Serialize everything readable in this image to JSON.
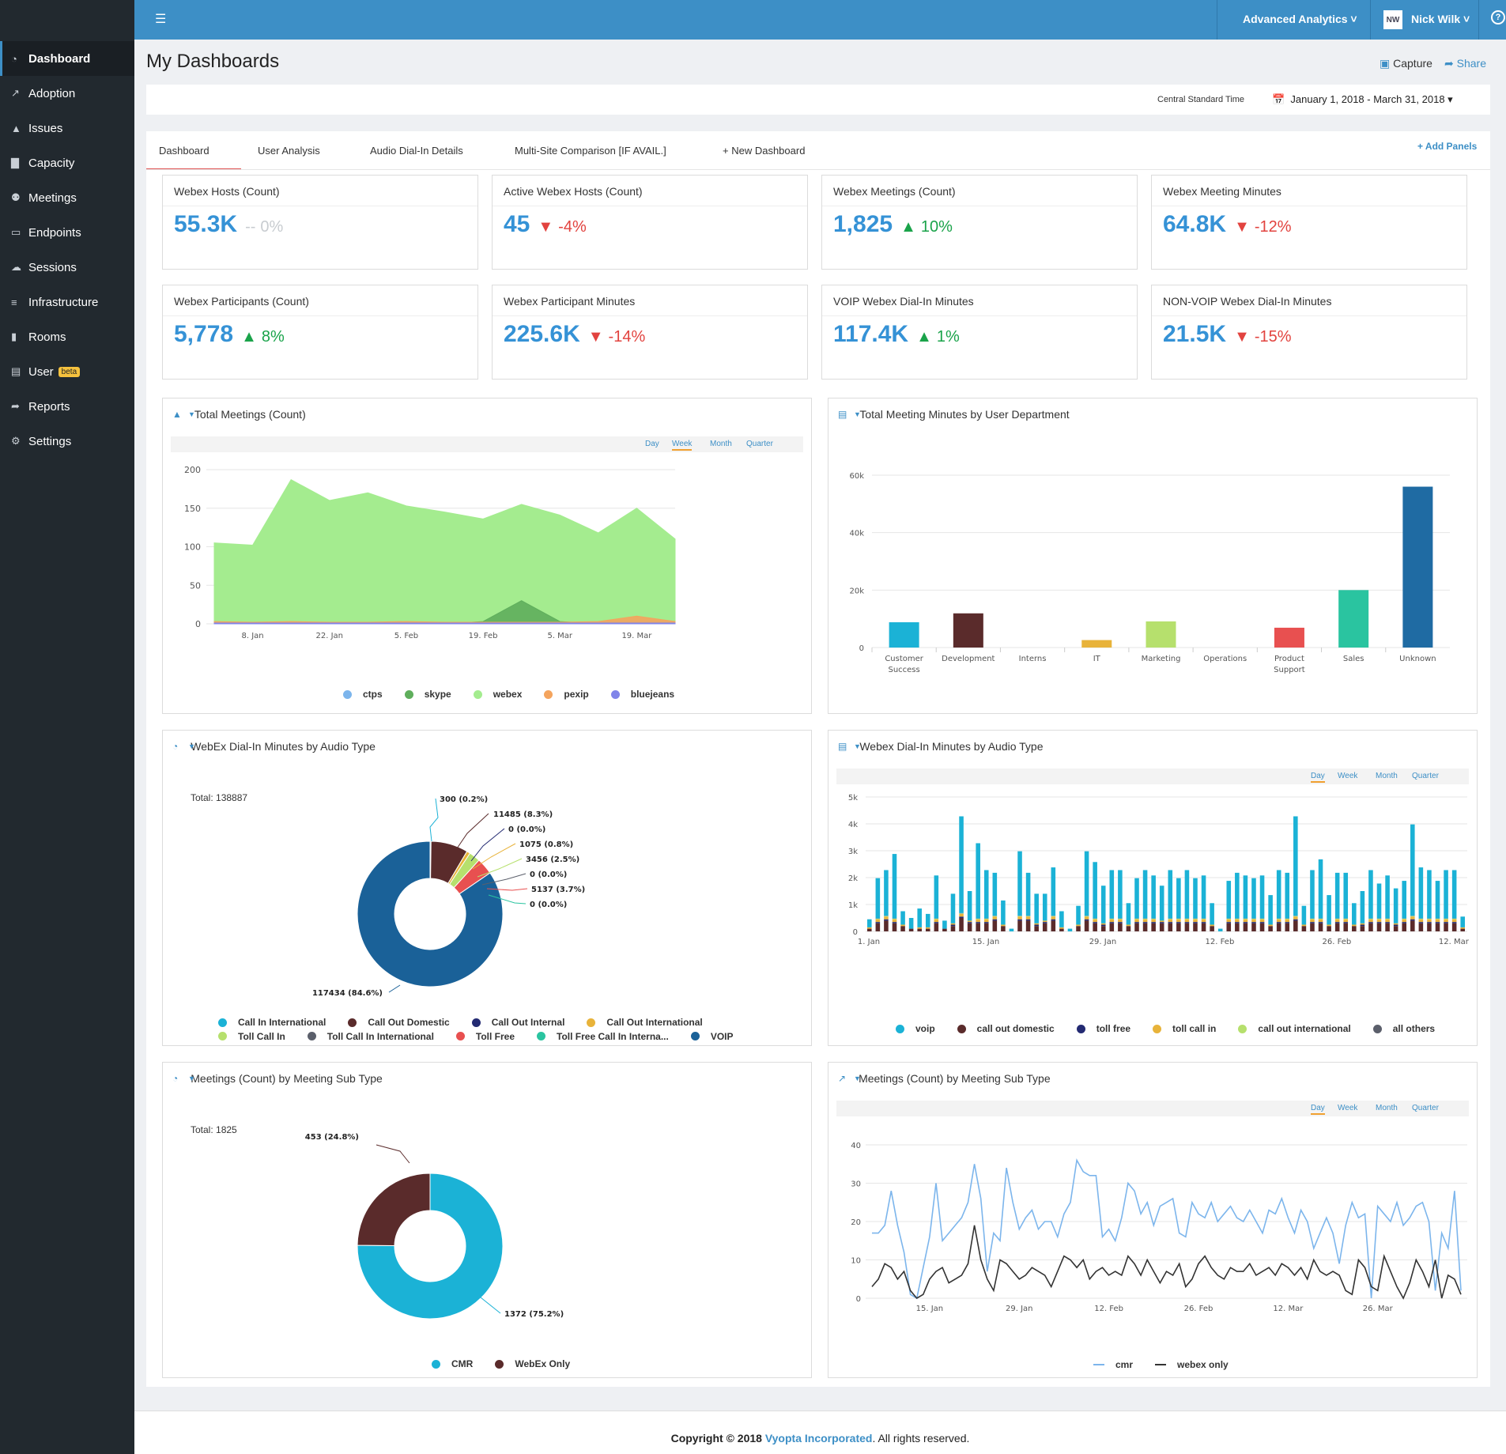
{
  "sidebar": {
    "items": [
      {
        "label": "Dashboard",
        "icon": "dashboard-icon"
      },
      {
        "label": "Adoption",
        "icon": "line-chart-icon"
      },
      {
        "label": "Issues",
        "icon": "warning-icon"
      },
      {
        "label": "Capacity",
        "icon": "bar-chart-icon"
      },
      {
        "label": "Meetings",
        "icon": "users-icon"
      },
      {
        "label": "Endpoints",
        "icon": "monitor-icon"
      },
      {
        "label": "Sessions",
        "icon": "chat-icon"
      },
      {
        "label": "Infrastructure",
        "icon": "server-icon"
      },
      {
        "label": "Rooms",
        "icon": "book-icon"
      },
      {
        "label": "User",
        "icon": "id-card-icon",
        "badge": "beta"
      },
      {
        "label": "Reports",
        "icon": "share-icon"
      },
      {
        "label": "Settings",
        "icon": "gear-icon"
      }
    ]
  },
  "topbar": {
    "analytics": "Advanced Analytics",
    "user_initials": "NW",
    "user_name": "Nick Wilk"
  },
  "header": {
    "title": "My Dashboards",
    "capture": "Capture",
    "share": "Share",
    "timezone": "Central Standard Time",
    "date_range": "January 1, 2018 - March 31, 2018"
  },
  "tabs": [
    "Dashboard",
    "User Analysis",
    "Audio Dial-In Details",
    "Multi-Site Comparison [IF AVAIL.]",
    "+ New Dashboard"
  ],
  "add_panels": "+ Add Panels",
  "kpis": [
    {
      "title": "Webex Hosts (Count)",
      "value": "55.3K",
      "change": "0%",
      "trend": "flat"
    },
    {
      "title": "Active Webex Hosts (Count)",
      "value": "45",
      "change": "-4%",
      "trend": "down"
    },
    {
      "title": "Webex Meetings (Count)",
      "value": "1,825",
      "change": "10%",
      "trend": "up"
    },
    {
      "title": "Webex Meeting Minutes",
      "value": "64.8K",
      "change": "-12%",
      "trend": "down"
    },
    {
      "title": "Webex Participants (Count)",
      "value": "5,778",
      "change": "8%",
      "trend": "up"
    },
    {
      "title": "Webex Participant Minutes",
      "value": "225.6K",
      "change": "-14%",
      "trend": "down"
    },
    {
      "title": "VOIP Webex Dial-In Minutes",
      "value": "117.4K",
      "change": "1%",
      "trend": "up"
    },
    {
      "title": "NON-VOIP Webex Dial-In Minutes",
      "value": "21.5K",
      "change": "-15%",
      "trend": "down"
    }
  ],
  "colors": {
    "up": "#1aa34a",
    "down": "#e2433f",
    "flat": "#c8ccd0",
    "accent": "#3d8fc6"
  },
  "granularity": [
    "Day",
    "Week",
    "Month",
    "Quarter"
  ],
  "panels": {
    "p1": {
      "title": "Total Meetings (Count)",
      "selected": "Week"
    },
    "p2": {
      "title": "Total Meeting Minutes by User Department"
    },
    "p3": {
      "title": "WebEx Dial-In Minutes by Audio Type",
      "total": "Total: 138887"
    },
    "p4": {
      "title": "Webex Dial-In Minutes by Audio Type",
      "selected": "Day"
    },
    "p5": {
      "title": "Meetings (Count) by Meeting Sub Type",
      "total": "Total: 1825"
    },
    "p6": {
      "title": "Meetings (Count) by Meeting Sub Type",
      "selected": "Day"
    }
  },
  "footer": {
    "prefix": "Copyright © 2018 ",
    "company": "Vyopta Incorporated",
    "suffix": ". All rights reserved."
  },
  "chart_data": [
    {
      "type": "area",
      "x": [
        "1. Jan",
        "8. Jan",
        "15. Jan",
        "22. Jan",
        "29. Jan",
        "5. Feb",
        "12. Feb",
        "19. Feb",
        "26. Feb",
        "5. Mar",
        "12. Mar",
        "19. Mar",
        "26. Mar"
      ],
      "xticks": [
        "8. Jan",
        "22. Jan",
        "5. Feb",
        "19. Feb",
        "5. Mar",
        "19. Mar"
      ],
      "ylim": [
        0,
        200
      ],
      "yticks": [
        0,
        50,
        100,
        150,
        200
      ],
      "series": [
        {
          "name": "webex",
          "color": "#a4ec8f",
          "values": [
            105,
            102,
            187,
            160,
            170,
            153,
            145,
            136,
            155,
            141,
            118,
            150,
            110
          ]
        },
        {
          "name": "skype",
          "color": "#5fae5c",
          "values": [
            0,
            0,
            0,
            0,
            0,
            0,
            0,
            3,
            30,
            3,
            0,
            0,
            0
          ]
        },
        {
          "name": "pexip",
          "color": "#f4a45e",
          "values": [
            3,
            2,
            3,
            2,
            2,
            3,
            2,
            2,
            2,
            2,
            3,
            10,
            3
          ]
        },
        {
          "name": "ctps",
          "color": "#7cb5ec",
          "values": [
            2,
            2,
            2,
            2,
            2,
            2,
            2,
            2,
            2,
            2,
            2,
            2,
            2
          ]
        },
        {
          "name": "bluejeans",
          "color": "#8085e9",
          "values": [
            1,
            1,
            1,
            1,
            1,
            1,
            1,
            1,
            1,
            1,
            1,
            1,
            1
          ]
        }
      ]
    },
    {
      "type": "bar",
      "categories": [
        "Customer Success",
        "Development",
        "Interns",
        "IT",
        "Marketing",
        "Operations",
        "Product Support",
        "Sales",
        "Unknown"
      ],
      "values": [
        8800,
        11900,
        0,
        2600,
        9100,
        0,
        6900,
        20000,
        56000
      ],
      "colors": [
        "#1bb2d6",
        "#5a2b2b",
        "#cccccc",
        "#e8b33a",
        "#b6e06d",
        "#cccccc",
        "#e85050",
        "#2ac4a0",
        "#1f6ba3"
      ],
      "ylim": [
        0,
        60000
      ],
      "yticks": [
        "0",
        "20k",
        "40k",
        "60k"
      ]
    },
    {
      "type": "pie",
      "slices": [
        {
          "name": "Call In International",
          "value": 300,
          "label": "300 (0.2%)",
          "color": "#1bb2d6"
        },
        {
          "name": "Call Out Domestic",
          "value": 11485,
          "label": "11485 (8.3%)",
          "color": "#5a2b2b"
        },
        {
          "name": "Call Out Internal",
          "value": 0,
          "label": "0 (0.0%)",
          "color": "#232a72"
        },
        {
          "name": "Call Out International",
          "value": 1075,
          "label": "1075 (0.8%)",
          "color": "#e8b33a"
        },
        {
          "name": "Toll Call In",
          "value": 3456,
          "label": "3456 (2.5%)",
          "color": "#b6e06d"
        },
        {
          "name": "Toll Call In International",
          "value": 0,
          "label": "0 (0.0%)",
          "color": "#5b5f6b"
        },
        {
          "name": "Toll Free",
          "value": 5137,
          "label": "5137 (3.7%)",
          "color": "#e85050"
        },
        {
          "name": "Toll Free Call In Interna...",
          "value": 0,
          "label": "0 (0.0%)",
          "color": "#2ac4a0"
        },
        {
          "name": "VOIP",
          "value": 117434,
          "label": "117434 (84.6%)",
          "color": "#1a6198"
        }
      ]
    },
    {
      "type": "bar",
      "stacked": true,
      "ylim": [
        0,
        5000
      ],
      "yticks": [
        "0",
        "1k",
        "2k",
        "3k",
        "4k",
        "5k"
      ],
      "xticks": [
        "1. Jan",
        "15. Jan",
        "29. Jan",
        "12. Feb",
        "26. Feb",
        "12. Mar",
        "26. Mar"
      ],
      "series": [
        {
          "name": "voip",
          "color": "#1bb2d6",
          "values": [
            300,
            1500,
            1700,
            2400,
            500,
            400,
            700,
            500,
            1600,
            300,
            1100,
            3600,
            1100,
            2800,
            1800,
            1600,
            900,
            100,
            2400,
            1600,
            1100,
            1000,
            1800,
            600,
            100,
            700,
            2400,
            2100,
            1400,
            1800,
            1800,
            800,
            1500,
            1800,
            1600,
            1300,
            1800,
            1500,
            1800,
            1500,
            1600,
            800,
            100,
            1400,
            1700,
            1600,
            1500,
            1600,
            1100,
            1800,
            1700,
            3700,
            700,
            1800,
            2200,
            1100,
            1700,
            1700,
            800,
            1200,
            1800,
            1300,
            1600,
            1300,
            1400,
            3400,
            1900,
            1800,
            1400,
            1800,
            1800,
            400
          ]
        },
        {
          "name": "call out domestic",
          "color": "#5a2b2b",
          "values": [
            100,
            300,
            400,
            300,
            200,
            100,
            100,
            100,
            300,
            100,
            200,
            500,
            300,
            300,
            300,
            400,
            200,
            0,
            400,
            400,
            200,
            300,
            400,
            100,
            0,
            200,
            400,
            300,
            200,
            300,
            300,
            200,
            300,
            300,
            300,
            300,
            300,
            300,
            300,
            300,
            300,
            200,
            0,
            300,
            300,
            300,
            300,
            300,
            200,
            300,
            300,
            400,
            200,
            300,
            300,
            200,
            300,
            300,
            200,
            200,
            300,
            300,
            300,
            200,
            300,
            400,
            300,
            300,
            300,
            300,
            300,
            100
          ]
        },
        {
          "name": "toll free",
          "color": "#232a72",
          "values": [
            0,
            50,
            50,
            50,
            0,
            0,
            0,
            0,
            50,
            0,
            50,
            50,
            50,
            50,
            50,
            50,
            0,
            0,
            50,
            50,
            50,
            50,
            50,
            0,
            0,
            0,
            50,
            50,
            50,
            50,
            50,
            0,
            50,
            50,
            50,
            50,
            50,
            50,
            50,
            50,
            50,
            0,
            0,
            50,
            50,
            50,
            50,
            50,
            0,
            50,
            50,
            50,
            0,
            50,
            50,
            0,
            50,
            50,
            0,
            50,
            50,
            50,
            50,
            50,
            50,
            50,
            50,
            50,
            50,
            50,
            50,
            0
          ]
        },
        {
          "name": "toll call in",
          "color": "#e8b33a",
          "values": [
            50,
            100,
            100,
            100,
            50,
            0,
            50,
            50,
            100,
            0,
            50,
            100,
            50,
            100,
            100,
            100,
            50,
            0,
            100,
            100,
            50,
            50,
            100,
            50,
            0,
            50,
            100,
            100,
            50,
            100,
            100,
            50,
            100,
            100,
            100,
            50,
            100,
            100,
            100,
            100,
            100,
            50,
            0,
            100,
            100,
            100,
            100,
            100,
            50,
            100,
            100,
            100,
            50,
            100,
            100,
            50,
            100,
            100,
            50,
            50,
            100,
            100,
            100,
            50,
            100,
            100,
            100,
            100,
            100,
            100,
            100,
            50
          ]
        },
        {
          "name": "call out international",
          "color": "#b6e06d",
          "values": [
            0,
            20,
            20,
            20,
            0,
            0,
            0,
            0,
            20,
            0,
            0,
            20,
            0,
            20,
            20,
            20,
            0,
            0,
            20,
            20,
            0,
            0,
            20,
            0,
            0,
            0,
            20,
            20,
            0,
            20,
            20,
            0,
            20,
            20,
            20,
            0,
            20,
            20,
            20,
            20,
            20,
            0,
            0,
            20,
            20,
            20,
            20,
            20,
            0,
            20,
            20,
            20,
            0,
            20,
            20,
            0,
            20,
            20,
            0,
            0,
            20,
            20,
            20,
            0,
            20,
            20,
            20,
            20,
            20,
            20,
            20,
            0
          ]
        },
        {
          "name": "all others",
          "color": "#5b5f6b",
          "values": [
            0,
            10,
            10,
            10,
            0,
            0,
            0,
            0,
            10,
            0,
            0,
            10,
            0,
            10,
            10,
            10,
            0,
            0,
            10,
            10,
            0,
            0,
            10,
            0,
            0,
            0,
            10,
            10,
            0,
            10,
            10,
            0,
            10,
            10,
            10,
            0,
            10,
            10,
            10,
            10,
            10,
            0,
            0,
            10,
            10,
            10,
            10,
            10,
            0,
            10,
            10,
            10,
            0,
            10,
            10,
            0,
            10,
            10,
            0,
            0,
            10,
            10,
            10,
            0,
            10,
            10,
            10,
            10,
            10,
            10,
            10,
            0
          ]
        }
      ]
    },
    {
      "type": "pie",
      "slices": [
        {
          "name": "CMR",
          "value": 1372,
          "label": "1372 (75.2%)",
          "color": "#1bb2d6"
        },
        {
          "name": "WebEx Only",
          "value": 453,
          "label": "453 (24.8%)",
          "color": "#5a2b2b"
        }
      ]
    },
    {
      "type": "line",
      "ylim": [
        0,
        40
      ],
      "yticks": [
        0,
        10,
        20,
        30,
        40
      ],
      "xticks": [
        "15. Jan",
        "29. Jan",
        "12. Feb",
        "26. Feb",
        "12. Mar",
        "26. Mar"
      ],
      "series": [
        {
          "name": "cmr",
          "color": "#7cb5ec",
          "values": [
            17,
            17,
            19,
            28,
            19,
            12,
            1,
            0,
            8,
            16,
            30,
            15,
            17,
            19,
            21,
            25,
            35,
            26,
            7,
            17,
            15,
            34,
            25,
            18,
            21,
            23,
            18,
            20,
            20,
            16,
            22,
            25,
            36,
            33,
            32,
            32,
            16,
            18,
            15,
            21,
            30,
            28,
            22,
            25,
            19,
            24,
            25,
            26,
            17,
            16,
            25,
            22,
            21,
            25,
            20,
            22,
            24,
            21,
            20,
            23,
            20,
            17,
            23,
            22,
            26,
            21,
            17,
            23,
            20,
            13,
            17,
            21,
            17,
            9,
            19,
            25,
            21,
            22,
            0,
            24,
            22,
            20,
            25,
            19,
            21,
            24,
            25,
            20,
            2,
            17,
            13,
            28,
            2
          ]
        },
        {
          "name": "webex only",
          "color": "#333333",
          "values": [
            3,
            5,
            9,
            8,
            5,
            7,
            2,
            0,
            1,
            5,
            7,
            8,
            4,
            5,
            6,
            9,
            19,
            10,
            5,
            2,
            10,
            9,
            7,
            5,
            6,
            8,
            7,
            6,
            3,
            7,
            11,
            10,
            8,
            10,
            5,
            7,
            8,
            6,
            7,
            6,
            11,
            9,
            6,
            10,
            7,
            4,
            7,
            6,
            9,
            3,
            5,
            9,
            11,
            8,
            6,
            5,
            8,
            7,
            7,
            9,
            6,
            7,
            8,
            6,
            9,
            8,
            6,
            8,
            5,
            10,
            7,
            6,
            7,
            6,
            2,
            1,
            10,
            8,
            3,
            2,
            11,
            7,
            3,
            0,
            4,
            10,
            7,
            3,
            10,
            0,
            6,
            5,
            1
          ]
        }
      ]
    }
  ]
}
